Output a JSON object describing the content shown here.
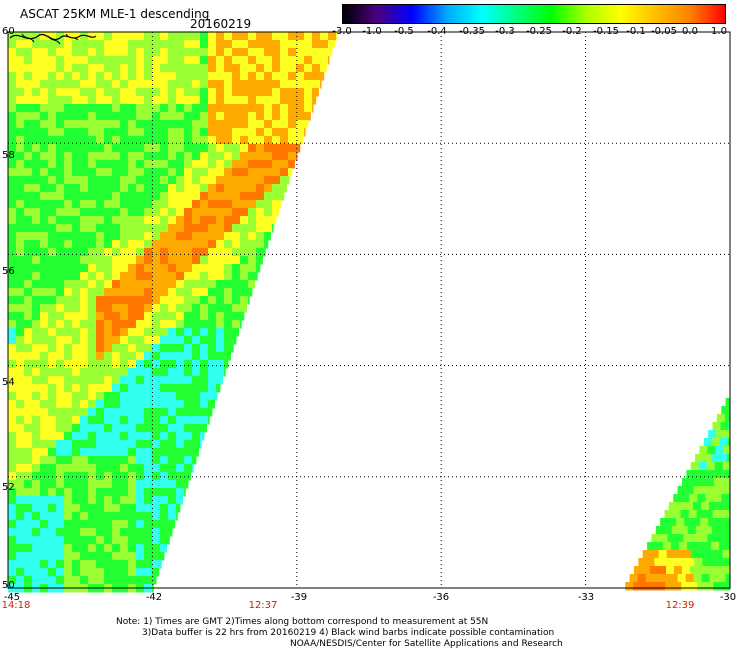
{
  "header": {
    "title": "ASCAT 25KM MLE-1 descending",
    "date": "20160219"
  },
  "colorbar": {
    "labels": [
      "-3.0",
      "-1.0",
      "-0.5",
      "-0.4",
      "-0.35",
      "-0.3",
      "-0.25",
      "-0.2",
      "-0.15",
      "-0.1",
      "-0.05",
      "0.0",
      "1.0"
    ],
    "colors": [
      "#000000",
      "#4b0082",
      "#0000ff",
      "#00aaff",
      "#00ffff",
      "#00ff7f",
      "#00ff00",
      "#aaff00",
      "#ffff00",
      "#ffbf00",
      "#ff8000",
      "#ff0000"
    ]
  },
  "map": {
    "lat_labels": [
      "60",
      "58",
      "56",
      "54",
      "52",
      "50"
    ],
    "lon_labels": [
      "-45",
      "-42",
      "-39",
      "-36",
      "-33",
      "-30"
    ],
    "time_labels": [
      "14:18",
      "12:37",
      "12:39"
    ],
    "colors": {
      "cyan": "#33ffee",
      "green": "#22ff33",
      "lime": "#99ff33",
      "yellow": "#ffff22",
      "orange": "#ffaa00",
      "darkorange": "#ff7700",
      "grid": "#000000"
    }
  },
  "footer": {
    "line1": "Note: 1) Times are GMT 2)Times along bottom correspond to measurement at 55N",
    "line2": "3)Data buffer is 22 hrs from 20160219 4) Black wind barbs indicate possible contamination",
    "line3": "NOAA/NESDIS/Center for Satellite Applications and Research"
  }
}
